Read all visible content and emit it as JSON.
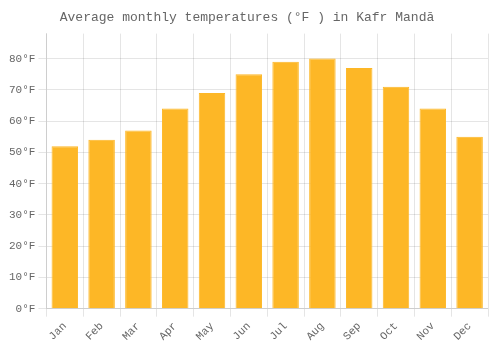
{
  "chart_data": {
    "type": "bar",
    "title": "Average monthly temperatures (°F ) in Kafr Mandā",
    "categories": [
      "Jan",
      "Feb",
      "Mar",
      "Apr",
      "May",
      "Jun",
      "Jul",
      "Aug",
      "Sep",
      "Oct",
      "Nov",
      "Dec"
    ],
    "values": [
      52,
      54,
      57,
      64,
      69,
      75,
      79,
      80,
      77,
      71,
      64,
      55
    ],
    "color": "#FDB726",
    "ylim": [
      0,
      88
    ],
    "yticks": [
      {
        "value": 0,
        "label": "0°F"
      },
      {
        "value": 10,
        "label": "10°F"
      },
      {
        "value": 20,
        "label": "20°F"
      },
      {
        "value": 30,
        "label": "30°F"
      },
      {
        "value": 40,
        "label": "40°F"
      },
      {
        "value": 50,
        "label": "50°F"
      },
      {
        "value": 60,
        "label": "60°F"
      },
      {
        "value": 70,
        "label": "70°F"
      },
      {
        "value": 80,
        "label": "80°F"
      }
    ],
    "grid": true
  }
}
